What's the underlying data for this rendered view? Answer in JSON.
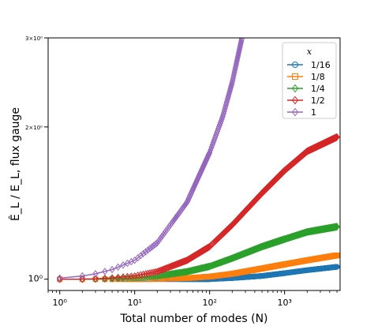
{
  "chart_data": {
    "type": "line",
    "xscale": "log",
    "yscale": "log",
    "xlim": [
      0.7,
      5500
    ],
    "ylim": [
      0.95,
      3.0
    ],
    "grid": false,
    "legend_position": "top-right",
    "xlabel": "Total number of modes (N)",
    "ylabel": "Ê_L / E_L, flux gauge",
    "legend_title": "x",
    "xticks": [
      {
        "value": 1,
        "label": "10⁰"
      },
      {
        "value": 10,
        "label": "10¹"
      },
      {
        "value": 100,
        "label": "10²"
      },
      {
        "value": 1000,
        "label": "10³"
      }
    ],
    "yticks": [
      {
        "value": 1,
        "label": "10⁰"
      },
      {
        "value": 2,
        "label": "2×10⁰"
      },
      {
        "value": 3,
        "label": "3×10⁰"
      }
    ],
    "series": [
      {
        "name": "1/16",
        "color": "#1f77b4",
        "marker": "circle",
        "x": [
          1,
          2,
          3,
          5,
          10,
          20,
          50,
          100,
          200,
          500,
          1000,
          2000,
          5000
        ],
        "y": [
          1.0,
          1.0,
          1.0,
          1.0,
          1.0,
          1.0,
          1.0,
          1.0,
          1.005,
          1.015,
          1.028,
          1.042,
          1.058
        ]
      },
      {
        "name": "1/8",
        "color": "#ff7f0e",
        "marker": "square",
        "x": [
          1,
          2,
          3,
          5,
          10,
          20,
          50,
          100,
          200,
          500,
          1000,
          2000,
          5000
        ],
        "y": [
          1.0,
          1.0,
          1.0,
          1.0,
          1.0,
          1.001,
          1.005,
          1.012,
          1.025,
          1.05,
          1.07,
          1.09,
          1.115
        ]
      },
      {
        "name": "1/4",
        "color": "#2ca02c",
        "marker": "diamond",
        "x": [
          1,
          2,
          3,
          5,
          10,
          20,
          50,
          100,
          200,
          500,
          1000,
          2000,
          5000
        ],
        "y": [
          1.0,
          1.0,
          1.0,
          1.002,
          1.006,
          1.015,
          1.035,
          1.06,
          1.1,
          1.16,
          1.2,
          1.24,
          1.27
        ]
      },
      {
        "name": "1/2",
        "color": "#d62728",
        "marker": "diamond",
        "x": [
          1,
          2,
          3,
          5,
          10,
          20,
          50,
          100,
          200,
          500,
          1000,
          2000,
          5000
        ],
        "y": [
          1.0,
          1.0,
          1.002,
          1.006,
          1.015,
          1.035,
          1.09,
          1.16,
          1.28,
          1.48,
          1.64,
          1.79,
          1.91
        ]
      },
      {
        "name": "1",
        "color": "#9467bd",
        "marker": "diamond",
        "x": [
          1,
          2,
          3,
          5,
          10,
          20,
          50,
          100,
          150,
          200,
          270
        ],
        "y": [
          1.005,
          1.015,
          1.025,
          1.045,
          1.09,
          1.18,
          1.42,
          1.78,
          2.1,
          2.45,
          3.0
        ]
      }
    ]
  }
}
